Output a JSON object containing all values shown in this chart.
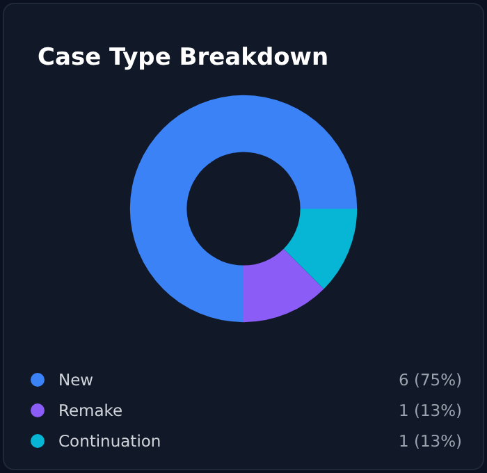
{
  "chart_data": {
    "type": "donut",
    "title": "Case Type Breakdown",
    "categories": [
      "New",
      "Remake",
      "Continuation"
    ],
    "values": [
      6,
      1,
      1
    ],
    "colors": [
      "#3b82f6",
      "#8b5cf6",
      "#06b6d4"
    ],
    "value_labels": [
      "6 (75%)",
      "1 (13%)",
      "1 (13%)"
    ],
    "legend": "bottom"
  }
}
